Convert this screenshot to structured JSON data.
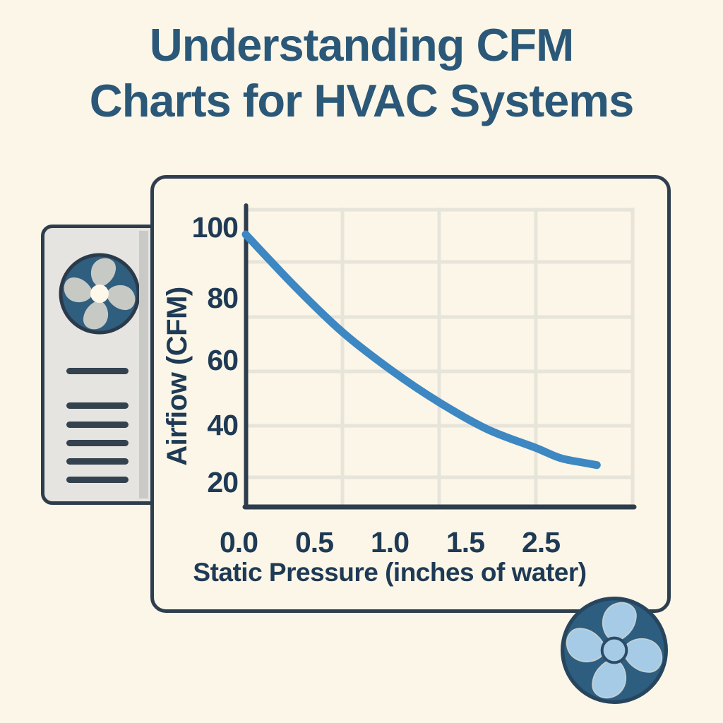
{
  "page": {
    "background_color": "#fbf6e7"
  },
  "title": {
    "line1": "Understanding CFM",
    "line2": "Charts for HVAC Systems",
    "color": "#2b5878"
  },
  "chart_data": {
    "type": "line",
    "title": "",
    "xlabel": "Static Pressure (inches of water)",
    "ylabel": "Airfiow (CFM)",
    "x_ticks": {
      "labels": [
        "0.0",
        "0.5",
        "1.0",
        "1.5",
        "2.5"
      ],
      "values": [
        0,
        0.5,
        1.0,
        1.5,
        2.5
      ]
    },
    "y_ticks": {
      "labels": [
        "100",
        "80",
        "60",
        "40",
        "20"
      ],
      "values": [
        100,
        80,
        60,
        40,
        20
      ]
    },
    "xlim": [
      0,
      2.5
    ],
    "ylim": [
      12,
      105
    ],
    "grid": true,
    "legend": false,
    "series": [
      {
        "name": "fan-performance-curve",
        "color": "#3d87c2",
        "points": [
          [
            0,
            98
          ],
          [
            0.25,
            83.5
          ],
          [
            0.5,
            69
          ],
          [
            0.75,
            57
          ],
          [
            1.0,
            47
          ],
          [
            1.25,
            38.5
          ],
          [
            1.5,
            32
          ],
          [
            1.75,
            28.5
          ],
          [
            2.0,
            26.8
          ],
          [
            2.13,
            26
          ]
        ]
      }
    ]
  },
  "illustrations": {
    "hvac_unit": {
      "icon": "fan-icon",
      "vent_slat_count": 6,
      "body_color": "#e5e4e0",
      "outline_color": "#2e3d4d",
      "fan_disc_color": "#2f5e7e",
      "fan_blade_color": "#c7c9c5",
      "fan_hub_color": "#fdf8ea"
    },
    "corner_fan": {
      "icon": "fan-icon",
      "disc_color": "#2d5e80",
      "blade_color": "#a5cbe7",
      "hub_color": "#a5cbe7"
    }
  },
  "colors": {
    "accent_curve": "#3d87c2",
    "card_border": "#2e3e4e",
    "axis": "#2e3d4d",
    "grid": "#e7e4da",
    "text_dark": "#1f3a55",
    "title_text": "#2b5878",
    "background": "#fbf6e7"
  }
}
